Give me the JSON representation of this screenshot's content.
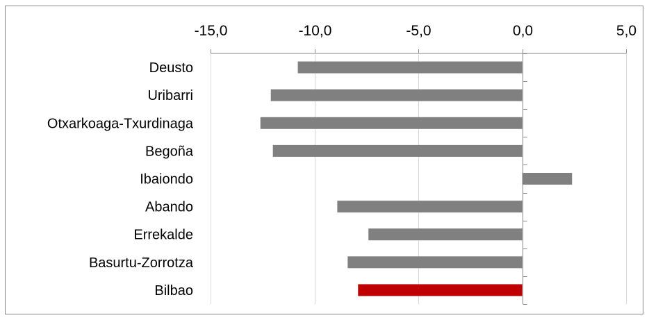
{
  "chart_data": {
    "type": "bar",
    "orientation": "horizontal",
    "categories": [
      "Deusto",
      "Uribarri",
      "Otxarkoaga-Txurdinaga",
      "Begoña",
      "Ibaiondo",
      "Abando",
      "Errekalde",
      "Basurtu-Zorrotza",
      "Bilbao"
    ],
    "values": [
      -10.8,
      -12.1,
      -12.6,
      -12.0,
      2.4,
      -8.9,
      -7.4,
      -8.4,
      -7.9
    ],
    "xlim": [
      -15,
      5
    ],
    "xticks": [
      -15,
      -10,
      -5,
      0,
      5
    ],
    "xtick_labels": [
      "-15,0",
      "-10,0",
      "-5,0",
      "0,0",
      "5,0"
    ],
    "x_axis_position": "top",
    "grid": "vertical",
    "legend": "none",
    "title": "",
    "xlabel": "",
    "ylabel": "",
    "colors": {
      "default_bar": "#808080",
      "highlight_bar": "#C00000",
      "grid": "#D9D9D9",
      "axis": "#868686",
      "frame": "#868686"
    },
    "highlight_category": "Bilbao"
  }
}
